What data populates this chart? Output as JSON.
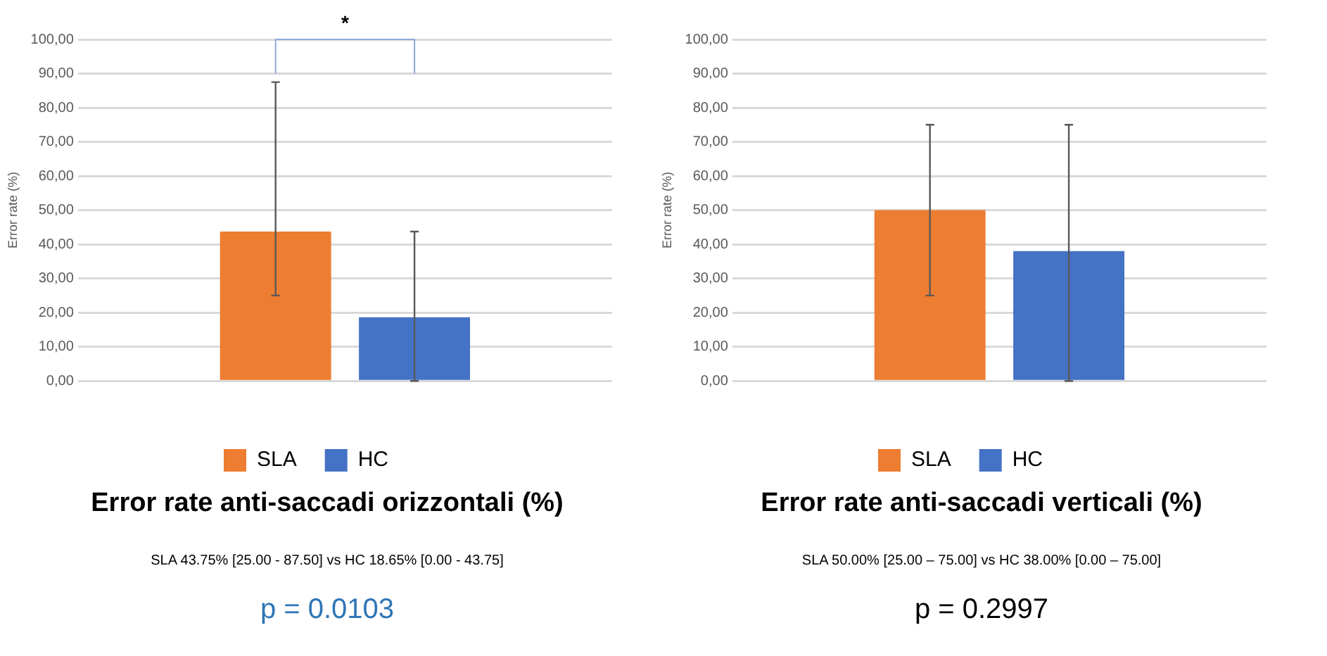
{
  "chart_data": [
    {
      "type": "bar",
      "title": "Error rate anti-saccadi orizzontali (%)",
      "ylabel": "Error rate (%)",
      "categories": [
        null
      ],
      "series": [
        {
          "name": "SLA",
          "color": "#ed7d31",
          "values": [
            43.75
          ],
          "errors": [
            [
              25,
              87.5
            ]
          ]
        },
        {
          "name": "HC",
          "color": "#4472c4",
          "values": [
            18.65
          ],
          "errors": [
            [
              0,
              43.75
            ]
          ]
        }
      ],
      "ylim": [
        0,
        100
      ],
      "yticks": [
        {
          "value": 0,
          "label": "0,00"
        },
        {
          "value": 10,
          "label": "10,00"
        },
        {
          "value": 20,
          "label": "20,00"
        },
        {
          "value": 30,
          "label": "30,00"
        },
        {
          "value": 40,
          "label": "40,00"
        },
        {
          "value": 50,
          "label": "50,00"
        },
        {
          "value": 60,
          "label": "60,00"
        },
        {
          "value": 70,
          "label": "70,00"
        },
        {
          "value": 80,
          "label": "80,00"
        },
        {
          "value": 90,
          "label": "90,00"
        },
        {
          "value": 100,
          "label": "100,00"
        }
      ],
      "grid": "y",
      "legend": "bottom",
      "annotations": [
        "*",
        "SLA 43.75% [25.00 - 87.50] vs HC 18.65% [0.00 - 43.75]",
        "p = 0.0103"
      ]
    },
    {
      "type": "bar",
      "title": "Error rate anti-saccadi verticali (%)",
      "ylabel": "Error rate (%)",
      "categories": [
        null
      ],
      "series": [
        {
          "name": "SLA",
          "color": "#ed7d31",
          "values": [
            50
          ],
          "errors": [
            [
              25,
              75
            ]
          ]
        },
        {
          "name": "HC",
          "color": "#4472c4",
          "values": [
            38
          ],
          "errors": [
            [
              0,
              75
            ]
          ]
        }
      ],
      "ylim": [
        0,
        100
      ],
      "yticks": [
        {
          "value": 0,
          "label": "0,00"
        },
        {
          "value": 10,
          "label": "10,00"
        },
        {
          "value": 20,
          "label": "20,00"
        },
        {
          "value": 30,
          "label": "30,00"
        },
        {
          "value": 40,
          "label": "40,00"
        },
        {
          "value": 50,
          "label": "50,00"
        },
        {
          "value": 60,
          "label": "60,00"
        },
        {
          "value": 70,
          "label": "70,00"
        },
        {
          "value": 80,
          "label": "80,00"
        },
        {
          "value": 90,
          "label": "90,00"
        },
        {
          "value": 100,
          "label": "100,00"
        }
      ],
      "grid": "y",
      "legend": "bottom",
      "annotations": [
        "SLA 50.00% [25.00 – 75.00] vs HC 38.00% [0.00 – 75.00]",
        "p = 0.2997"
      ]
    }
  ]
}
